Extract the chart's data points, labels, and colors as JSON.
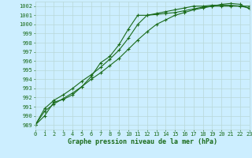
{
  "title": "Graphe pression niveau de la mer (hPa)",
  "bg_color": "#cceeff",
  "grid_color": "#b8d8d8",
  "line_color": "#1a6b1a",
  "xlim": [
    0,
    23
  ],
  "ylim": [
    988.5,
    1002.5
  ],
  "xticks": [
    0,
    1,
    2,
    3,
    4,
    5,
    6,
    7,
    8,
    9,
    10,
    11,
    12,
    13,
    14,
    15,
    16,
    17,
    18,
    19,
    20,
    21,
    22,
    23
  ],
  "yticks": [
    989,
    990,
    991,
    992,
    993,
    994,
    995,
    996,
    997,
    998,
    999,
    1000,
    1001,
    1002
  ],
  "series": [
    [
      989.0,
      990.0,
      991.5,
      991.8,
      992.3,
      993.2,
      994.3,
      995.8,
      996.5,
      997.8,
      999.5,
      1001.0,
      1001.0,
      1001.1,
      1001.2,
      1001.3,
      1001.5,
      1001.7,
      1001.9,
      1002.0,
      1002.0,
      1002.0,
      1002.0,
      1002.0
    ],
    [
      989.0,
      990.8,
      991.7,
      992.3,
      993.0,
      993.8,
      994.5,
      995.3,
      996.2,
      997.2,
      998.5,
      1000.0,
      1001.0,
      1001.2,
      1001.4,
      1001.6,
      1001.8,
      1002.0,
      1002.0,
      1002.1,
      1002.1,
      1002.1,
      1002.0,
      1001.8
    ],
    [
      989.0,
      990.5,
      991.3,
      991.9,
      992.5,
      993.2,
      994.0,
      994.7,
      995.5,
      996.3,
      997.3,
      998.3,
      999.2,
      1000.0,
      1000.5,
      1001.0,
      1001.3,
      1001.6,
      1001.8,
      1002.0,
      1002.2,
      1002.3,
      1002.2,
      1001.7
    ]
  ]
}
